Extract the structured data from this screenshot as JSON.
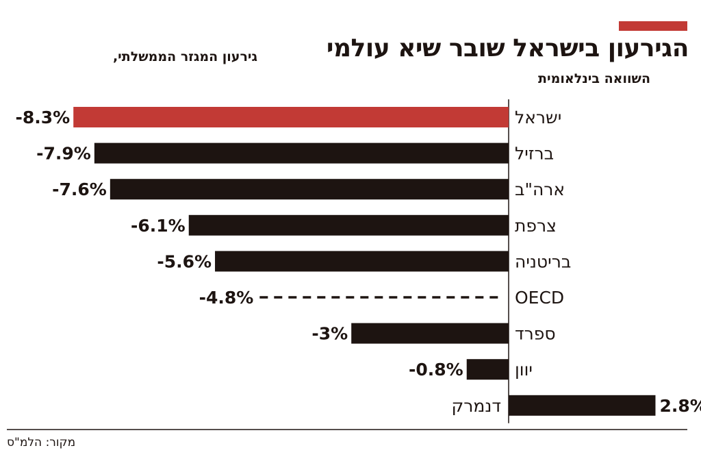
{
  "header": {
    "title": "הגירעון בישראל שובר שיא עולמי",
    "subtitle": "גירעון המגזר הממשלתי,",
    "subtitle_line2": "השוואה בינלאומית"
  },
  "footer": {
    "source": "מקור: הלמ\"ס"
  },
  "colors": {
    "accent": "#c23a35",
    "bar": "#1d1411",
    "text": "#1d1411"
  },
  "chart_data": {
    "type": "bar",
    "orientation": "horizontal",
    "title": "הגירעון בישראל שובר שיא עולמי",
    "subtitle": "גירעון המגזר הממשלתי, השוואה בינלאומית",
    "unit": "%",
    "xlim": [
      -8.3,
      2.8
    ],
    "categories": [
      "ישראל",
      "ברזיל",
      "ארה\"ב",
      "צרפת",
      "בריטניה",
      "OECD",
      "ספרד",
      "יוון",
      "דנמרק"
    ],
    "values": [
      -8.3,
      -7.9,
      -7.6,
      -6.1,
      -5.6,
      -4.8,
      -3,
      -0.8,
      2.8
    ],
    "value_labels": [
      "-8.3%",
      "-7.9%",
      "-7.6%",
      "-6.1%",
      "-5.6%",
      "-4.8%",
      "-3%",
      "-0.8%",
      "2.8%"
    ],
    "highlight": [
      "ישראל"
    ],
    "reference": [
      "OECD"
    ],
    "source": "מקור: הלמ\"ס"
  }
}
